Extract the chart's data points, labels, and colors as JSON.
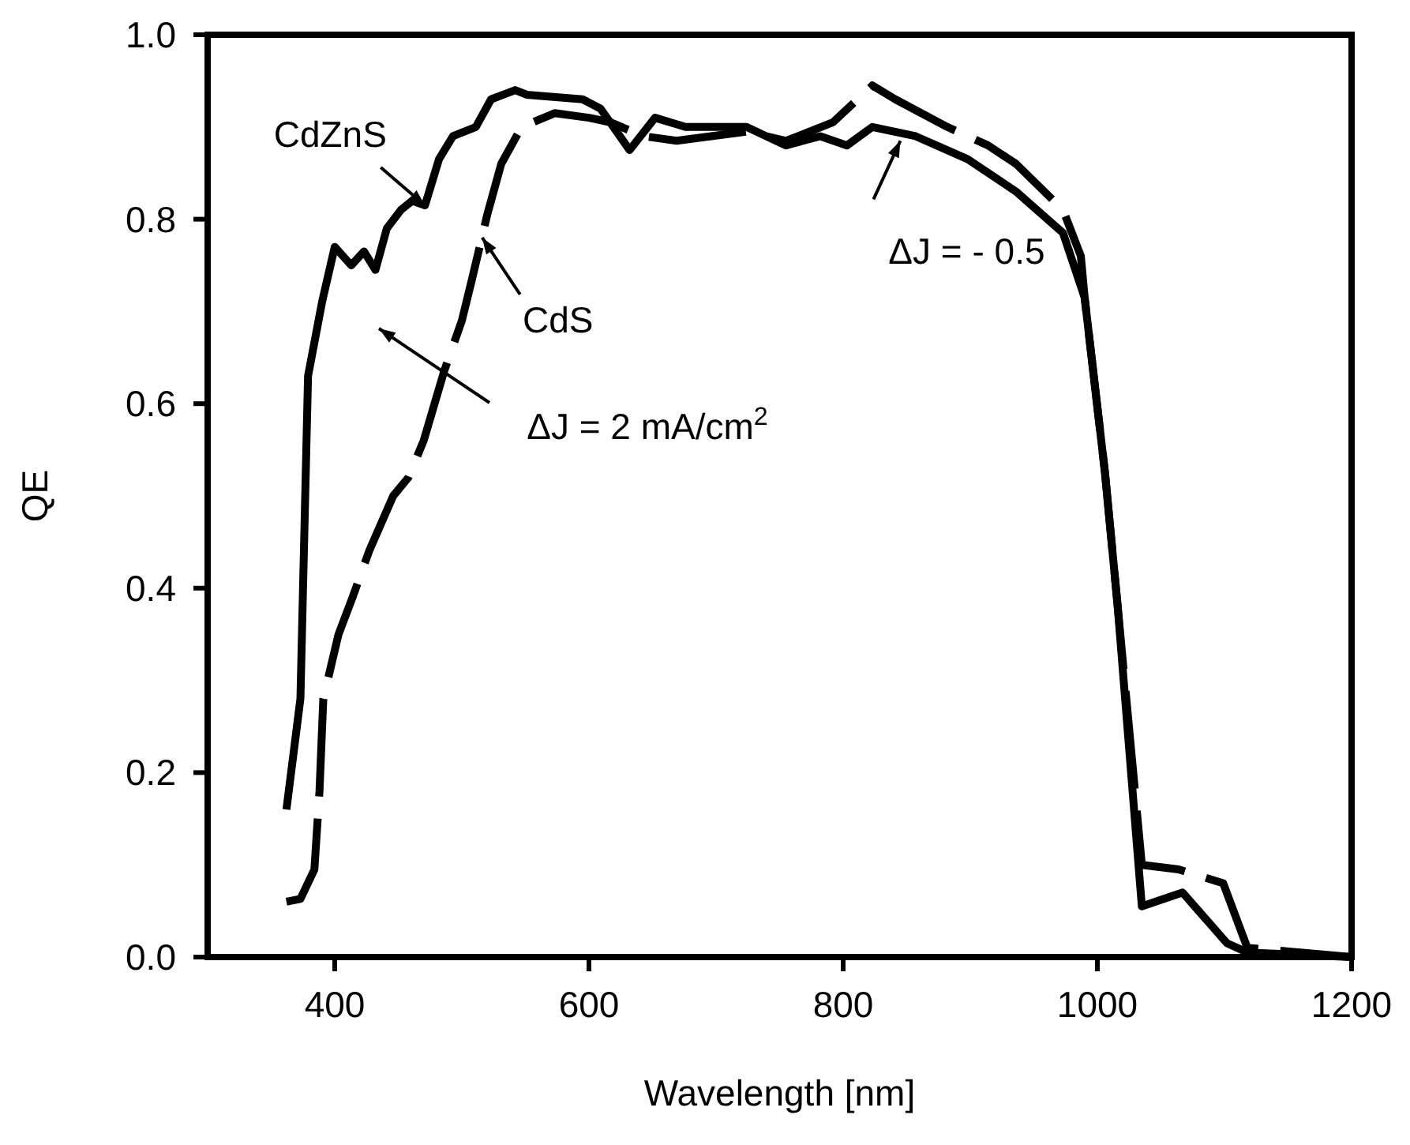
{
  "chart_data": {
    "type": "line",
    "xlabel": "Wavelength [nm]",
    "ylabel": "QE",
    "xlim": [
      300,
      1200
    ],
    "xticks": [
      400,
      600,
      800,
      1000,
      1200
    ],
    "ylim": [
      0,
      1
    ],
    "yticks": [
      {
        "value": 0,
        "label": "0.0"
      },
      {
        "value": 0.2,
        "label": "0.2"
      },
      {
        "value": 0.4,
        "label": "0.4"
      },
      {
        "value": 0.6,
        "label": "0.6"
      },
      {
        "value": 0.8,
        "label": "0.8"
      },
      {
        "value": 1,
        "label": "1.0"
      }
    ],
    "grid": false,
    "marker": "none",
    "series": [
      {
        "color": "#000000",
        "line_style": "solid",
        "x": [
          362,
          373,
          379,
          390,
          400,
          413,
          423,
          432,
          441,
          452,
          461,
          471,
          482,
          493,
          511,
          523,
          542,
          551,
          595,
          609,
          632,
          652,
          676,
          724,
          755,
          782,
          803,
          823,
          857,
          898,
          936,
          973,
          990,
          1006,
          1016,
          1035,
          1067,
          1102,
          1118,
          1200
        ],
        "values": [
          0.16,
          0.28,
          0.63,
          0.71,
          0.77,
          0.75,
          0.765,
          0.745,
          0.79,
          0.81,
          0.82,
          0.815,
          0.865,
          0.89,
          0.9,
          0.93,
          0.94,
          0.935,
          0.93,
          0.92,
          0.875,
          0.91,
          0.9,
          0.9,
          0.88,
          0.89,
          0.88,
          0.9,
          0.89,
          0.865,
          0.83,
          0.785,
          0.715,
          0.525,
          0.38,
          0.055,
          0.07,
          0.015,
          0.005,
          0
        ]
      },
      {
        "color": "#000000",
        "line_style": "dashed",
        "x": [
          362,
          373,
          384,
          388,
          391,
          403,
          414,
          427,
          446,
          458,
          470,
          486,
          500,
          508,
          520,
          531,
          547,
          573,
          600,
          617,
          643,
          669,
          724,
          755,
          792,
          823,
          841,
          882,
          914,
          936,
          973,
          987,
          990,
          1006,
          1016,
          1035,
          1064,
          1099,
          1118,
          1200
        ],
        "values": [
          0.06,
          0.063,
          0.095,
          0.18,
          0.28,
          0.35,
          0.39,
          0.44,
          0.5,
          0.52,
          0.56,
          0.635,
          0.69,
          0.735,
          0.805,
          0.86,
          0.9,
          0.915,
          0.91,
          0.905,
          0.89,
          0.885,
          0.895,
          0.885,
          0.905,
          0.945,
          0.93,
          0.9,
          0.88,
          0.86,
          0.81,
          0.76,
          0.715,
          0.525,
          0.38,
          0.1,
          0.095,
          0.08,
          0.01,
          0
        ]
      }
    ],
    "annotations": [
      {
        "text": "CdZnS",
        "x": 471,
        "y": 0.815
      },
      {
        "text": "CdS",
        "x": 516,
        "y": 0.78
      },
      "ΔJ = 2 mA/cm$^{2}$",
      {
        "text": "ΔJ = - 0.5",
        "x": 845,
        "y": 0.885
      }
    ]
  }
}
